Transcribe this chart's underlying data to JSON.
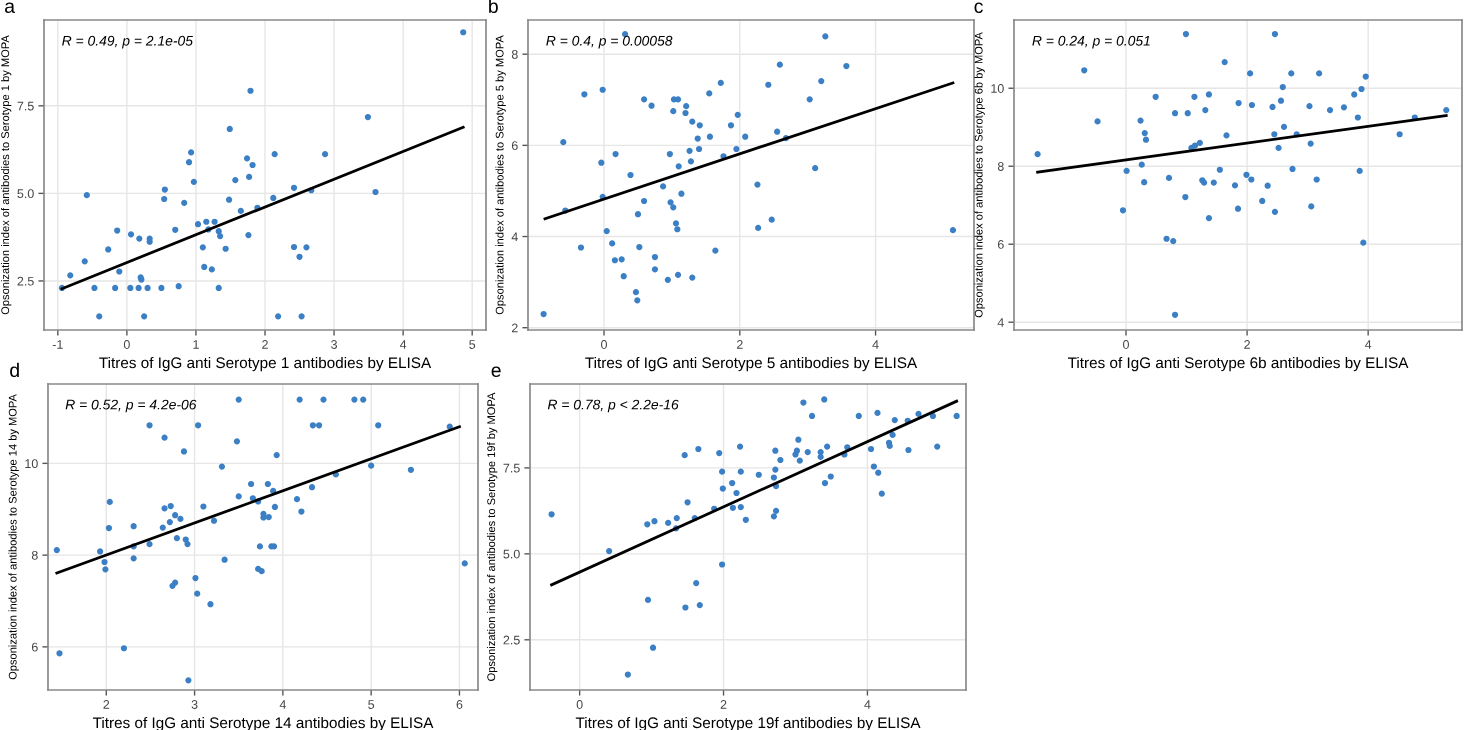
{
  "chart_data": [
    {
      "type": "scatter",
      "title": "a",
      "xlabel": "Titres of IgG anti Serotype 1 antibodies by ELISA",
      "ylabel": "Opsonization index of antibodies to Serotype 1 by MOPA",
      "xlim": [
        -1.2,
        5.2
      ],
      "ylim": [
        1.1,
        9.95
      ],
      "xticks": [
        -1,
        0,
        1,
        2,
        3,
        4,
        5
      ],
      "yticks": [
        {
          "value": 2.5,
          "label": "2.5"
        },
        {
          "value": 5,
          "label": "5.0"
        },
        {
          "value": 7.5,
          "label": "7.5"
        }
      ],
      "grid": true,
      "marker": "circle",
      "annotations": [
        "R = 0.49, p = 2.1e-05"
      ],
      "series": [
        {
          "color": "#3b7fc4",
          "x": [
            4.87,
            1.79,
            3.49,
            1.49,
            0.93,
            0.9,
            1.74,
            2.14,
            2.87,
            1.82,
            0.97,
            1.57,
            1.77,
            0.55,
            0.54,
            -0.58,
            0.83,
            1.48,
            1.89,
            2.12,
            2.42,
            2.67,
            3.6,
            1.65,
            1.03,
            1.15,
            1.27,
            -0.14,
            0.06,
            0.18,
            0.33,
            0.33,
            0.7,
            1.33,
            1.35,
            1.18,
            1.76,
            -0.27,
            -0.61,
            -0.82,
            -0.11,
            1.12,
            1.23,
            1.1,
            1.43,
            2.42,
            2.6,
            2.5,
            -0.94,
            -0.47,
            -0.17,
            0.05,
            0.17,
            0.21,
            0.3,
            0.5,
            0.75,
            1.33,
            -0.4,
            0.25,
            2.19,
            2.53,
            0.2
          ],
          "values": [
            9.6,
            7.93,
            7.18,
            6.84,
            6.17,
            5.89,
            6.0,
            6.12,
            6.12,
            5.81,
            5.33,
            5.38,
            5.47,
            5.11,
            4.84,
            4.95,
            4.73,
            4.82,
            4.59,
            4.87,
            5.16,
            5.09,
            5.04,
            4.5,
            4.12,
            4.19,
            4.19,
            3.94,
            3.83,
            3.71,
            3.71,
            3.62,
            3.96,
            3.92,
            3.78,
            3.97,
            3.81,
            3.4,
            3.06,
            2.66,
            2.77,
            2.9,
            2.83,
            3.46,
            3.42,
            3.47,
            3.46,
            3.19,
            2.3,
            2.3,
            2.3,
            2.3,
            2.3,
            2.54,
            2.3,
            2.3,
            2.35,
            2.3,
            1.49,
            1.49,
            1.49,
            1.49,
            2.6
          ]
        },
        {
          "type": "line",
          "marker": "none",
          "color": "#000000",
          "x": [
            -0.94,
            4.87
          ],
          "values": [
            2.28,
            6.89
          ]
        }
      ]
    },
    {
      "type": "scatter",
      "title": "b",
      "xlabel": "Titres of IgG anti Serotype 5 antibodies by ELISA",
      "ylabel": "Opsonization index of antibodies to Serotype 5 by MOPA",
      "xlim": [
        -1.12,
        5.45
      ],
      "ylim": [
        1.95,
        8.75
      ],
      "xticks": [
        0,
        2,
        4
      ],
      "yticks": [
        2,
        4,
        6,
        8
      ],
      "grid": true,
      "marker": "circle",
      "annotations": [
        "R = 0.4, p = 0.00058"
      ],
      "series": [
        {
          "color": "#3b7fc4",
          "x": [
            0.31,
            3.26,
            2.59,
            3.57,
            3.2,
            1.72,
            2.42,
            -0.29,
            -0.02,
            1.55,
            0.59,
            1.03,
            1.09,
            0.7,
            1.21,
            1.2,
            1.02,
            1.97,
            3.03,
            1.3,
            1.41,
            1.87,
            -0.6,
            1.38,
            1.56,
            2.08,
            2.55,
            2.68,
            0.17,
            0.97,
            1.26,
            1.4,
            1.95,
            1.76,
            1.28,
            1.1,
            -0.04,
            0.39,
            3.11,
            0.87,
            2.26,
            -0.02,
            0.59,
            0.98,
            1.02,
            1.14,
            -0.57,
            0.5,
            1.06,
            1.08,
            0.04,
            2.27,
            2.47,
            5.14,
            0.12,
            -0.34,
            0.52,
            1.64,
            0.16,
            0.26,
            0.75,
            0.75,
            0.29,
            1.09,
            1.3,
            0.94,
            0.47,
            0.49,
            -0.89
          ],
          "values": [
            8.44,
            8.39,
            7.77,
            7.74,
            7.41,
            7.37,
            7.33,
            7.12,
            7.22,
            7.14,
            7.01,
            7.01,
            7.01,
            6.87,
            6.86,
            6.71,
            6.75,
            6.67,
            7.01,
            6.52,
            6.44,
            6.44,
            6.07,
            6.15,
            6.19,
            6.19,
            6.3,
            6.16,
            5.81,
            5.81,
            5.88,
            5.92,
            5.92,
            5.76,
            5.65,
            5.54,
            5.62,
            5.35,
            5.5,
            5.1,
            5.14,
            4.87,
            4.78,
            4.75,
            4.64,
            4.94,
            4.57,
            4.49,
            4.29,
            4.16,
            4.12,
            4.19,
            4.37,
            4.14,
            3.85,
            3.76,
            3.77,
            3.69,
            3.48,
            3.5,
            3.55,
            3.28,
            3.13,
            3.16,
            3.1,
            3.05,
            2.78,
            2.6,
            2.3
          ]
        },
        {
          "type": "line",
          "marker": "none",
          "color": "#000000",
          "x": [
            -0.87,
            5.14
          ],
          "values": [
            4.39,
            7.37
          ]
        }
      ]
    },
    {
      "type": "scatter",
      "title": "c",
      "xlabel": "Titres of IgG anti Serotype 6b antibodies by ELISA",
      "ylabel": "Opsonization index of antibodies to Serotype 6b by MOPA",
      "xlim": [
        -1.85,
        5.55
      ],
      "ylim": [
        3.8,
        11.75
      ],
      "xticks": [
        0,
        2,
        4
      ],
      "yticks": [
        4,
        6,
        8,
        10
      ],
      "grid": true,
      "marker": "circle",
      "annotations": [
        "R = 0.24, p = 0.051"
      ],
      "series": [
        {
          "color": "#3b7fc4",
          "x": [
            0.99,
            2.46,
            -0.69,
            1.63,
            2.05,
            2.73,
            3.19,
            3.96,
            2.59,
            3.89,
            0.49,
            1.13,
            1.37,
            3.77,
            1.86,
            2.08,
            2.42,
            2.56,
            3.03,
            3.37,
            3.6,
            1.31,
            1.02,
            0.81,
            -0.47,
            0.24,
            2.61,
            3.83,
            4.77,
            5.29,
            0.31,
            0.33,
            1.66,
            2.45,
            2.82,
            4.52,
            1.14,
            1.08,
            1.22,
            2.52,
            3.05,
            -1.46,
            0.01,
            0.26,
            0.71,
            0.3,
            1.26,
            1.29,
            1.45,
            1.55,
            1.8,
            1.99,
            2.07,
            2.34,
            2.75,
            3.15,
            3.86,
            0.98,
            -0.05,
            2.25,
            3.06,
            1.37,
            1.85,
            2.46,
            0.67,
            0.78,
            3.92,
            0.81
          ],
          "values": [
            11.39,
            11.39,
            10.46,
            10.67,
            10.38,
            10.38,
            10.38,
            10.3,
            10.03,
            9.98,
            9.78,
            9.78,
            9.84,
            9.84,
            9.62,
            9.57,
            9.52,
            9.68,
            9.54,
            9.44,
            9.51,
            9.44,
            9.36,
            9.36,
            9.15,
            9.17,
            9.01,
            9.25,
            9.25,
            9.44,
            8.85,
            8.68,
            8.79,
            8.82,
            8.82,
            8.82,
            8.53,
            8.47,
            8.6,
            8.47,
            8.58,
            8.31,
            7.88,
            8.04,
            7.7,
            7.59,
            7.64,
            7.58,
            7.58,
            7.91,
            7.51,
            7.78,
            7.66,
            7.5,
            7.93,
            7.66,
            7.88,
            7.21,
            6.87,
            7.11,
            6.97,
            6.67,
            6.91,
            6.83,
            6.14,
            6.08,
            6.04,
            4.19
          ]
        },
        {
          "type": "line",
          "marker": "none",
          "color": "#000000",
          "x": [
            -1.46,
            5.29
          ],
          "values": [
            7.85,
            9.3
          ]
        }
      ]
    },
    {
      "type": "scatter",
      "title": "d",
      "xlabel": "Titres of IgG anti Serotype 14 antibodies by ELISA",
      "ylabel": "Opsonization index of antibodies to Serotype 14 by MOPA",
      "xlim": [
        1.34,
        6.21
      ],
      "ylim": [
        5.06,
        11.73
      ],
      "xticks": [
        2,
        3,
        4,
        5,
        6
      ],
      "yticks": [
        6,
        8,
        10
      ],
      "grid": true,
      "marker": "circle",
      "annotations": [
        "R = 0.52, p = 4.2e-06"
      ],
      "series": [
        {
          "color": "#3b7fc4",
          "x": [
            3.5,
            4.19,
            4.46,
            4.81,
            4.91,
            2.49,
            3.04,
            4.34,
            4.41,
            5.08,
            5.89,
            2.66,
            3.48,
            2.88,
            3.93,
            3.31,
            5.0,
            5.45,
            4.6,
            3.64,
            3.83,
            3.89,
            4.33,
            3.5,
            3.66,
            3.72,
            2.04,
            2.73,
            2.66,
            3.1,
            4.16,
            3.91,
            4.21,
            2.78,
            3.78,
            3.78,
            3.84,
            2.72,
            2.84,
            3.22,
            2.64,
            2.31,
            2.03,
            2.8,
            2.9,
            2.92,
            2.49,
            3.74,
            3.87,
            3.9,
            1.44,
            1.93,
            2.31,
            2.31,
            3.34,
            1.98,
            1.99,
            3.72,
            3.76,
            6.06,
            3.01,
            2.78,
            2.75,
            3.03,
            3.18,
            1.47,
            2.2,
            2.93
          ],
          "values": [
            11.39,
            11.39,
            11.39,
            11.39,
            11.39,
            10.83,
            10.83,
            10.83,
            10.83,
            10.83,
            10.8,
            10.56,
            10.48,
            10.26,
            10.18,
            9.93,
            9.95,
            9.86,
            9.76,
            9.55,
            9.55,
            9.4,
            9.48,
            9.28,
            9.24,
            9.17,
            9.16,
            9.07,
            9.02,
            9.06,
            9.22,
            9.05,
            8.95,
            8.87,
            8.9,
            8.82,
            8.83,
            8.72,
            8.79,
            8.75,
            8.6,
            8.63,
            8.59,
            8.37,
            8.34,
            8.24,
            8.24,
            8.19,
            8.19,
            8.19,
            8.11,
            8.08,
            8.19,
            7.93,
            7.9,
            7.85,
            7.69,
            7.7,
            7.65,
            7.82,
            7.5,
            7.4,
            7.33,
            7.16,
            6.93,
            5.86,
            5.97,
            5.27
          ]
        },
        {
          "type": "line",
          "marker": "none",
          "color": "#000000",
          "x": [
            1.44,
            6.0
          ],
          "values": [
            7.61,
            10.8
          ]
        }
      ]
    },
    {
      "type": "scatter",
      "title": "e",
      "xlabel": "Titres of IgG anti Serotype 19f antibodies by ELISA",
      "ylabel": "Opsonization index of antibodies to Serotype 19f by MOPA",
      "xlim": [
        -0.69,
        5.37
      ],
      "ylim": [
        1.04,
        9.94
      ],
      "xticks": [
        0,
        2,
        4
      ],
      "yticks": [
        {
          "value": 2.5,
          "label": "2.5"
        },
        {
          "value": 5,
          "label": "5.0"
        },
        {
          "value": 7.5,
          "label": "7.5"
        }
      ],
      "grid": true,
      "marker": "circle",
      "annotations": [
        "R = 0.78, p < 2.2e-16"
      ],
      "series": [
        {
          "color": "#3b7fc4",
          "x": [
            3.11,
            3.4,
            3.23,
            3.88,
            4.71,
            4.91,
            5.24,
            4.14,
            4.38,
            4.56,
            3.04,
            4.97,
            3.02,
            3.0,
            3.17,
            3.35,
            3.35,
            3.44,
            3.72,
            3.68,
            4.05,
            4.31,
            4.35,
            4.3,
            4.57,
            2.72,
            2.79,
            3.06,
            4.09,
            1.46,
            1.65,
            1.94,
            2.23,
            1.98,
            2.24,
            2.49,
            2.72,
            2.7,
            2.73,
            3.49,
            3.41,
            4.15,
            4.2,
            2.12,
            1.99,
            2.18,
            1.5,
            1.87,
            2.13,
            2.24,
            2.73,
            2.7,
            2.31,
            1.6,
            1.35,
            1.34,
            1.04,
            0.94,
            1.23,
            -0.39,
            0.41,
            1.98,
            1.62,
            0.95,
            1.47,
            1.67,
            1.02,
            0.67
          ],
          "values": [
            9.4,
            9.49,
            9.01,
            9.01,
            9.07,
            9.01,
            9.01,
            9.1,
            8.89,
            8.87,
            8.32,
            8.12,
            8.0,
            7.89,
            7.96,
            7.96,
            7.82,
            8.12,
            8.1,
            7.89,
            8.05,
            8.14,
            8.46,
            8.23,
            8.02,
            8.0,
            7.73,
            7.71,
            7.54,
            7.87,
            8.05,
            7.93,
            8.12,
            7.39,
            7.39,
            7.3,
            7.45,
            7.22,
            6.97,
            7.25,
            7.06,
            7.36,
            6.75,
            7.06,
            6.9,
            6.77,
            6.5,
            6.31,
            6.34,
            6.36,
            6.25,
            6.09,
            5.99,
            6.04,
            6.04,
            5.74,
            5.95,
            5.86,
            5.9,
            6.15,
            5.08,
            4.69,
            4.15,
            3.66,
            3.44,
            3.51,
            2.27,
            1.49
          ]
        },
        {
          "type": "line",
          "marker": "none",
          "color": "#000000",
          "x": [
            -0.39,
            5.24
          ],
          "values": [
            4.1,
            9.44
          ]
        }
      ]
    }
  ]
}
